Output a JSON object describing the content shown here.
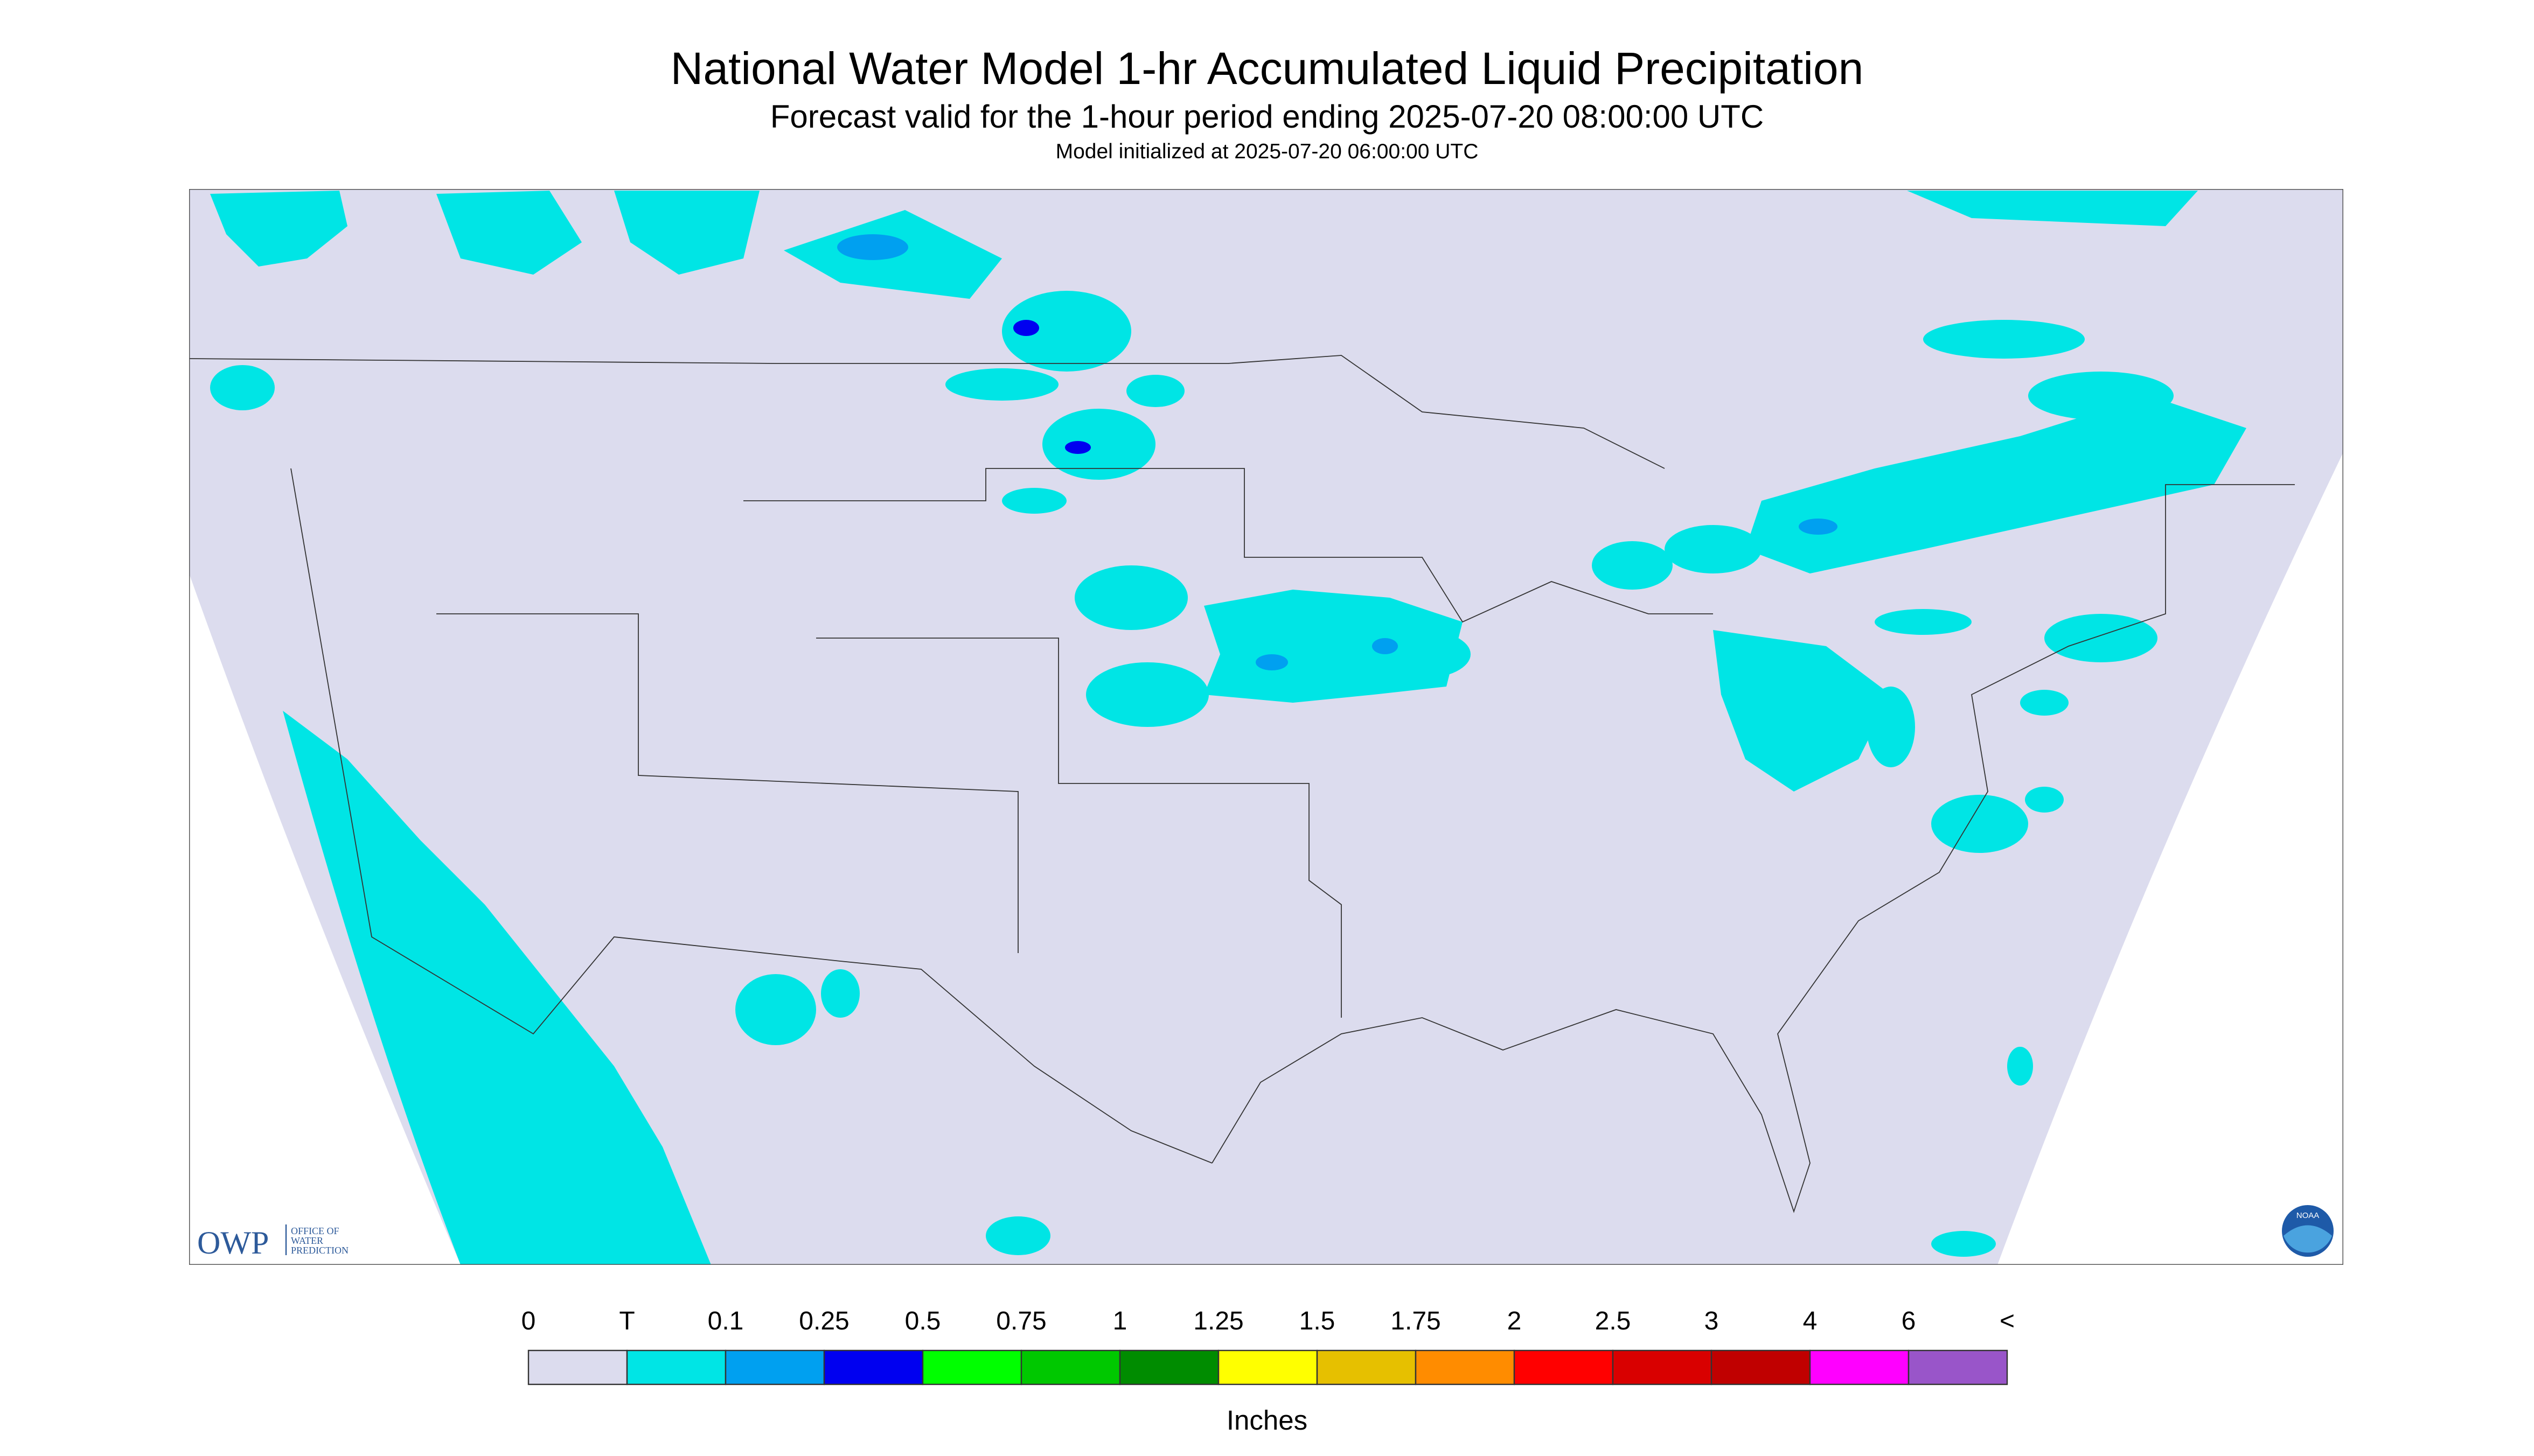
{
  "header": {
    "title": "National Water Model 1-hr Accumulated Liquid Precipitation",
    "subtitle": "Forecast valid for the 1-hour period ending 2025-07-20 08:00:00 UTC",
    "initialized": "Model initialized at 2025-07-20 06:00:00 UTC"
  },
  "legend": {
    "labels": [
      "0",
      "T",
      "0.1",
      "0.25",
      "0.5",
      "0.75",
      "1",
      "1.25",
      "1.5",
      "1.75",
      "2",
      "2.5",
      "3",
      "4",
      "6",
      "<"
    ],
    "colors": [
      "#dcdcee",
      "#00e5e5",
      "#00a0f0",
      "#0000f0",
      "#00ff00",
      "#00c800",
      "#008c00",
      "#ffff00",
      "#e6c000",
      "#ff8c00",
      "#ff0000",
      "#d90000",
      "#c00000",
      "#ff00ff",
      "#9955c9"
    ],
    "units": "Inches"
  },
  "logos": {
    "owp": "OWP",
    "owp_text": [
      "OFFICE OF",
      "WATER",
      "PREDICTION"
    ],
    "noaa": "NOAA"
  }
}
